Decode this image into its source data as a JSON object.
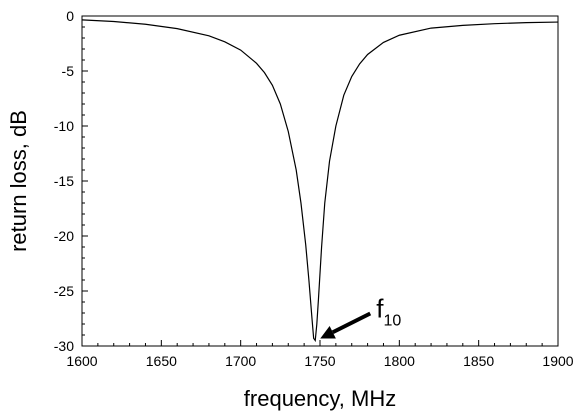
{
  "chart_data": {
    "type": "line",
    "title": "",
    "xlabel": "frequency, MHz",
    "ylabel": "return loss, dB",
    "xlim": [
      1600,
      1900
    ],
    "ylim": [
      -30,
      0
    ],
    "x_ticks": [
      1600,
      1650,
      1700,
      1750,
      1800,
      1850,
      1900
    ],
    "y_ticks": [
      0,
      -5,
      -10,
      -15,
      -20,
      -25,
      -30
    ],
    "x_tick_labels": [
      "1600",
      "1650",
      "1700",
      "1750",
      "1800",
      "1850",
      "1900"
    ],
    "y_tick_labels": [
      "0",
      "-5",
      "-10",
      "-15",
      "-20",
      "-25",
      "-30"
    ],
    "grid": false,
    "legend": "none",
    "line_color": "#000000",
    "series": [
      {
        "x": [
          1600,
          1620,
          1640,
          1660,
          1680,
          1690,
          1700,
          1710,
          1715,
          1720,
          1725,
          1730,
          1735,
          1738,
          1741,
          1743,
          1745,
          1746,
          1747,
          1748,
          1749,
          1751,
          1753,
          1756,
          1760,
          1765,
          1770,
          1775,
          1780,
          1790,
          1800,
          1820,
          1840,
          1860,
          1880,
          1900
        ],
        "y": [
          -0.35,
          -0.5,
          -0.75,
          -1.15,
          -1.8,
          -2.35,
          -3.1,
          -4.3,
          -5.15,
          -6.3,
          -8.0,
          -10.5,
          -14.0,
          -17.0,
          -20.8,
          -24.0,
          -27.6,
          -29.3,
          -29.5,
          -28.0,
          -25.8,
          -21.0,
          -17.0,
          -13.2,
          -10.0,
          -7.2,
          -5.5,
          -4.35,
          -3.5,
          -2.4,
          -1.75,
          -1.1,
          -0.85,
          -0.7,
          -0.6,
          -0.55
        ]
      }
    ],
    "annotations": [
      {
        "label_main": "f",
        "label_sub": "10",
        "points_to": {
          "x": 1747,
          "y": -29.5
        }
      }
    ]
  }
}
